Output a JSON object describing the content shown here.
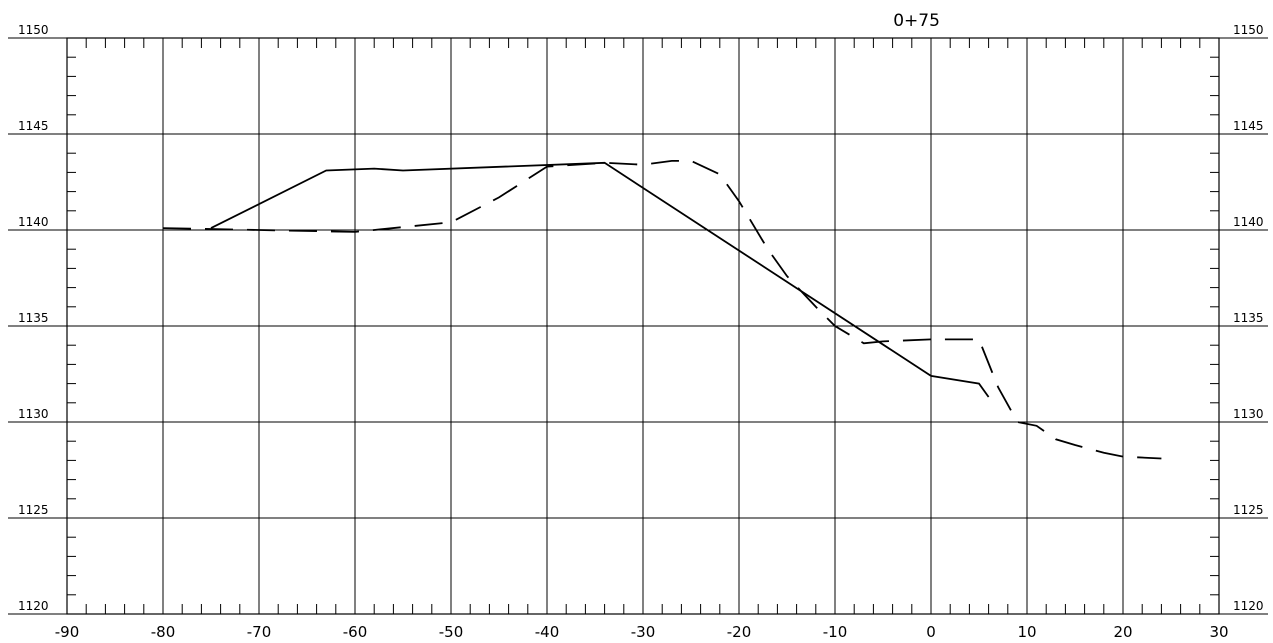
{
  "chart_data": {
    "type": "line",
    "title": "0+75",
    "xlabel": "",
    "ylabel": "",
    "xlim": [
      -90,
      30
    ],
    "ylim": [
      1120,
      1150
    ],
    "x_major_step": 10,
    "x_minor_step": 2,
    "y_major_step": 5,
    "y_minor_step": 1,
    "x_ticks": [
      "-90",
      "-80",
      "-70",
      "-60",
      "-50",
      "-40",
      "-30",
      "-20",
      "-10",
      "0",
      "10",
      "20",
      "30"
    ],
    "y_ticks": [
      "1120",
      "1125",
      "1130",
      "1135",
      "1140",
      "1145",
      "1150"
    ],
    "grid": true,
    "series": [
      {
        "style": "solid",
        "x": [
          -75,
          -63,
          -58,
          -55,
          -34,
          0,
          5,
          6
        ],
        "y": [
          1140.1,
          1143.1,
          1143.2,
          1143.1,
          1143.5,
          1132.4,
          1132.0,
          1131.3
        ]
      },
      {
        "style": "dashed",
        "x": [
          -80,
          -70,
          -60,
          -50,
          -45,
          -40,
          -34,
          -30,
          -27,
          -25,
          -22,
          -20,
          -17,
          -15,
          -12,
          -10,
          -7,
          -5,
          0,
          5,
          7,
          9,
          11,
          13,
          15,
          18,
          20,
          24
        ],
        "y": [
          1140.1,
          1140.0,
          1139.9,
          1140.4,
          1141.7,
          1143.3,
          1143.5,
          1143.4,
          1143.6,
          1143.6,
          1142.9,
          1141.5,
          1139.0,
          1137.6,
          1136.0,
          1135.0,
          1134.1,
          1134.2,
          1134.3,
          1134.3,
          1131.8,
          1130.0,
          1129.8,
          1129.1,
          1128.8,
          1128.4,
          1128.2,
          1128.1
        ]
      }
    ]
  }
}
